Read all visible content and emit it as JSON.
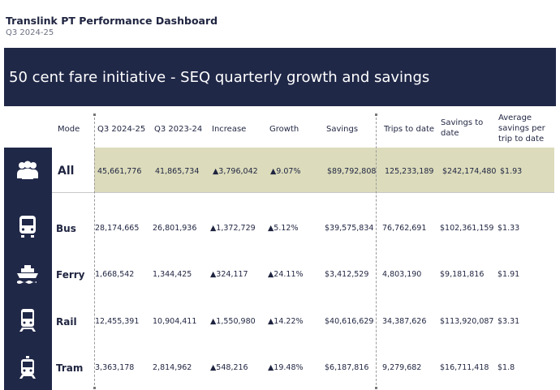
{
  "header": {
    "title": "Translink PT Performance Dashboard",
    "subtitle": "Q3 2024-25"
  },
  "banner": {
    "text": "50 cent fare initiative - SEQ quarterly growth and savings"
  },
  "columns": {
    "mode": "Mode",
    "q3_2024": "Q3 2024-25",
    "q3_2023": "Q3 2023-24",
    "increase": "Increase",
    "growth": "Growth",
    "savings": "Savings",
    "trips_to_date": "Trips to date",
    "savings_to_date": "Savings to date",
    "avg_savings": "Average savings per trip to date"
  },
  "rows": [
    {
      "mode": "All",
      "icon": "people-icon",
      "q3_2024": "45,661,776",
      "q3_2023": "41,865,734",
      "increase": "▲3,796,042",
      "growth": "▲9.07%",
      "savings": "$89,792,808",
      "trips_to_date": "125,233,189",
      "savings_to_date": "$242,174,480",
      "avg_savings": "$1.93"
    },
    {
      "mode": "Bus",
      "icon": "bus-icon",
      "q3_2024": "28,174,665",
      "q3_2023": "26,801,936",
      "increase": "▲1,372,729",
      "growth": "▲5.12%",
      "savings": "$39,575,834",
      "trips_to_date": "76,762,691",
      "savings_to_date": "$102,361,159",
      "avg_savings": "$1.33"
    },
    {
      "mode": "Ferry",
      "icon": "ferry-icon",
      "q3_2024": "1,668,542",
      "q3_2023": "1,344,425",
      "increase": "▲324,117",
      "growth": "▲24.11%",
      "savings": "$3,412,529",
      "trips_to_date": "4,803,190",
      "savings_to_date": "$9,181,816",
      "avg_savings": "$1.91"
    },
    {
      "mode": "Rail",
      "icon": "train-icon",
      "q3_2024": "12,455,391",
      "q3_2023": "10,904,411",
      "increase": "▲1,550,980",
      "growth": "▲14.22%",
      "savings": "$40,616,629",
      "trips_to_date": "34,387,626",
      "savings_to_date": "$113,920,087",
      "avg_savings": "$3.31"
    },
    {
      "mode": "Tram",
      "icon": "tram-icon",
      "q3_2024": "3,363,178",
      "q3_2023": "2,814,962",
      "increase": "▲548,216",
      "growth": "▲19.48%",
      "savings": "$6,187,816",
      "trips_to_date": "9,279,682",
      "savings_to_date": "$16,711,418",
      "avg_savings": "$1.8"
    }
  ]
}
